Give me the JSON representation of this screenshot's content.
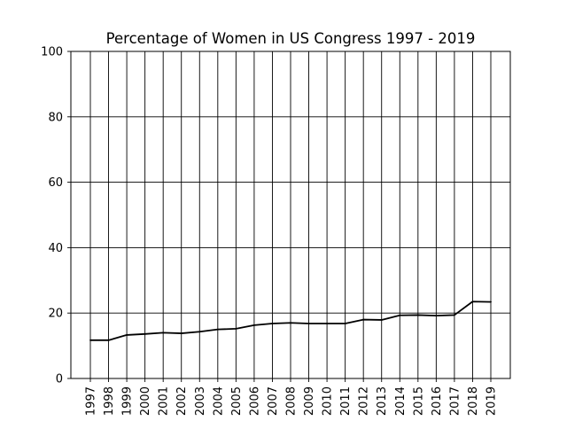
{
  "chart_data": {
    "type": "line",
    "title": "Percentage of Women in US Congress 1997 - 2019",
    "xlabel": "",
    "ylabel": "",
    "categories": [
      "1997",
      "1998",
      "1999",
      "2000",
      "2001",
      "2002",
      "2003",
      "2004",
      "2005",
      "2006",
      "2007",
      "2008",
      "2009",
      "2010",
      "2011",
      "2012",
      "2013",
      "2014",
      "2015",
      "2016",
      "2017",
      "2018",
      "2019"
    ],
    "series": [
      {
        "values": [
          11.7,
          11.7,
          13.3,
          13.6,
          14.0,
          13.8,
          14.3,
          15.0,
          15.2,
          16.3,
          16.8,
          17.0,
          16.8,
          16.8,
          16.8,
          18.0,
          17.9,
          19.3,
          19.4,
          19.2,
          19.4,
          23.5,
          23.4
        ],
        "color": "#000000"
      }
    ],
    "ylim": [
      0,
      100
    ],
    "yticks": [
      0,
      20,
      40,
      60,
      80,
      100
    ],
    "grid": true,
    "legend": "none"
  }
}
